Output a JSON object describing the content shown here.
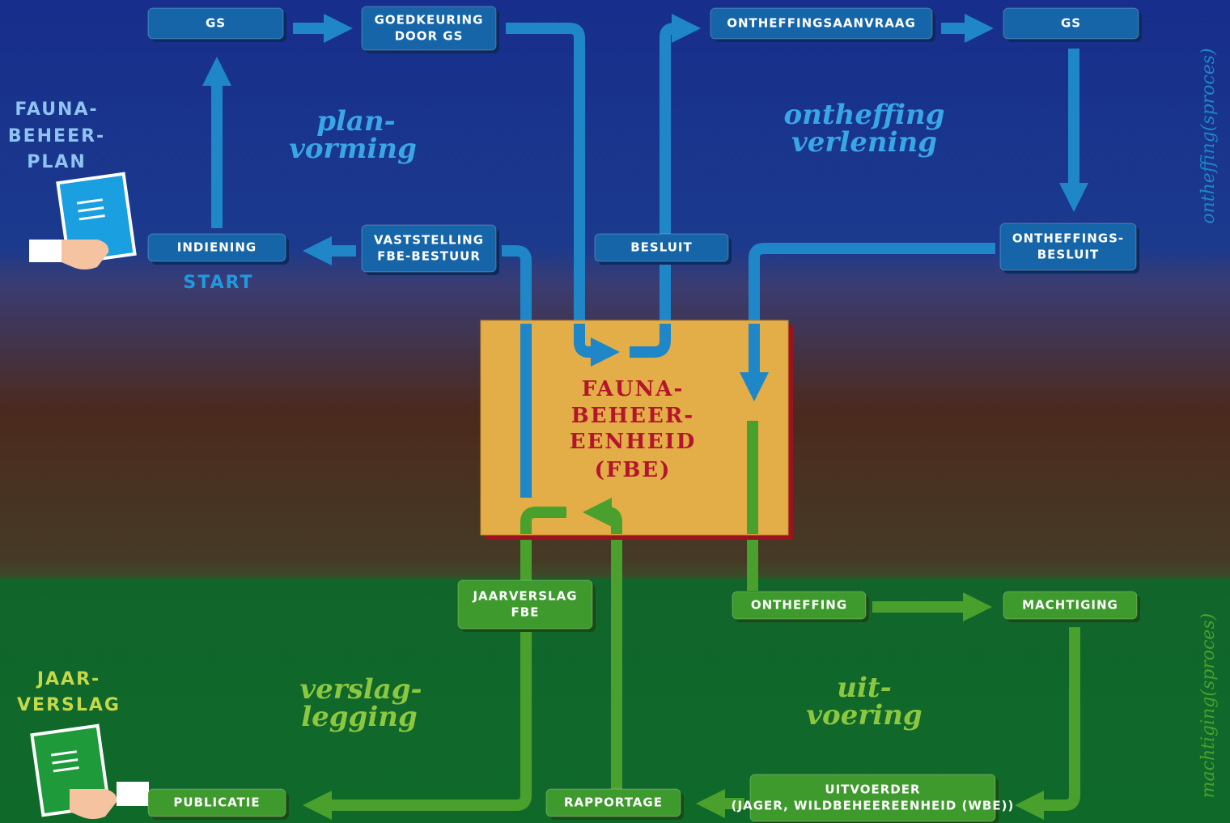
{
  "nodes": [
    {
      "lines": [
        "GS"
      ]
    },
    {
      "lines": [
        "GOEDKEURING",
        "DOOR GS"
      ]
    },
    {
      "lines": [
        "ONTHEFFINGSAANVRAAG"
      ]
    },
    {
      "lines": [
        "GS"
      ]
    },
    {
      "lines": [
        "INDIENING"
      ]
    },
    {
      "lines": [
        "VASTSTELLING",
        "FBE-BESTUUR"
      ]
    },
    {
      "lines": [
        "BESLUIT"
      ]
    },
    {
      "lines": [
        "ONTHEFFINGS-",
        "BESLUIT"
      ]
    },
    {
      "lines": [
        "JAARVERSLAG",
        "FBE"
      ]
    },
    {
      "lines": [
        "ONTHEFFING"
      ]
    },
    {
      "lines": [
        "MACHTIGING"
      ]
    },
    {
      "lines": [
        "PUBLICATIE"
      ]
    },
    {
      "lines": [
        "RAPPORTAGE"
      ]
    },
    {
      "lines": [
        "UITVOERDER",
        "(JAGER, WILDBEHEEREENHEID (WBE))"
      ]
    }
  ],
  "center": {
    "lines": [
      "FAUNA-",
      "BEHEER-",
      "EENHEID",
      "(FBE)"
    ]
  },
  "phases": [
    {
      "lines": [
        "plan-",
        "vorming"
      ]
    },
    {
      "lines": [
        "ontheffing",
        "verlening"
      ]
    },
    {
      "lines": [
        "verslag-",
        "legging"
      ]
    },
    {
      "lines": [
        "uit-",
        "voering"
      ]
    }
  ],
  "documents": {
    "plan": {
      "lines": [
        "FAUNA-",
        "BEHEER-",
        "PLAN"
      ]
    },
    "start": "START",
    "report": {
      "lines": [
        "JAAR-",
        "VERSLAG"
      ]
    }
  },
  "side_labels": [
    "ontheffing(sproces)",
    "machtiging(sproces)"
  ]
}
